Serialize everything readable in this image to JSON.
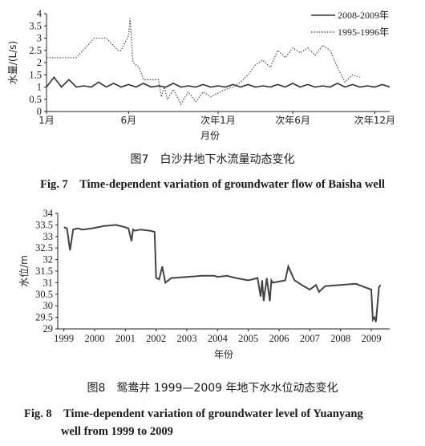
{
  "chart_data": [
    {
      "type": "line",
      "ylabel": "水量/(L/s)",
      "xlabel": "月份",
      "ylim": [
        0,
        4
      ],
      "yticks": [
        "0",
        "0.5",
        "1",
        "1.5",
        "2",
        "2.5",
        "3",
        "3.5",
        "4"
      ],
      "xticks": [
        "1月",
        "6月",
        "次年1月",
        "次年6月",
        "次年12月"
      ],
      "legend_position": "top-right",
      "series": [
        {
          "name": "2008-2009年",
          "style": "solid",
          "color": "#333333",
          "x": [
            0,
            0.5,
            1,
            1.5,
            2,
            2.5,
            3,
            3.5,
            4,
            4.5,
            5,
            5.5,
            6,
            6.5,
            7,
            7.5,
            8,
            8.5,
            9,
            9.5,
            10,
            10.5,
            11,
            11.5,
            12,
            12.5,
            13,
            13.5,
            14,
            14.5,
            15,
            15.5,
            16,
            16.5,
            17,
            17.5,
            18,
            18.5,
            19,
            19.5,
            20,
            20.5,
            21,
            21.5,
            22,
            22.5,
            23
          ],
          "y": [
            1.0,
            1.4,
            1.0,
            1.3,
            1.0,
            1.05,
            1.0,
            1.2,
            1.0,
            1.15,
            1.0,
            1.1,
            1.0,
            1.15,
            1.0,
            1.05,
            1.0,
            1.15,
            1.0,
            1.05,
            1.0,
            1.1,
            1.0,
            1.05,
            1.0,
            1.1,
            1.0,
            1.1,
            1.0,
            1.05,
            1.0,
            1.1,
            1.0,
            1.15,
            1.0,
            1.1,
            1.0,
            1.05,
            1.0,
            1.15,
            1.0,
            1.1,
            1.0,
            1.05,
            1.0,
            1.1,
            1.0
          ]
        },
        {
          "name": "1995-1996年",
          "style": "dotted",
          "color": "#555555",
          "x": [
            0,
            2,
            3.2,
            4,
            4.8,
            5,
            5.5,
            5.6,
            5.8,
            6.2,
            6.5,
            7.5,
            7.7,
            7.9,
            8.1,
            8.5,
            9,
            9.5,
            10,
            10.5,
            11,
            12,
            12.5,
            13,
            13.5,
            14,
            14.5,
            15,
            15.5,
            16,
            16.5,
            17,
            17.5,
            18,
            18.5,
            19,
            19.5,
            20,
            20.5,
            21
          ],
          "y": [
            2.2,
            2.2,
            3.0,
            3.0,
            2.5,
            2.5,
            3.1,
            3.8,
            2.0,
            1.8,
            1.3,
            1.3,
            0.6,
            1.0,
            0.5,
            0.9,
            0.3,
            0.8,
            0.4,
            0.8,
            0.6,
            0.9,
            1.0,
            1.2,
            1.5,
            1.9,
            2.1,
            1.8,
            2.5,
            2.2,
            2.6,
            2.4,
            2.6,
            2.3,
            2.7,
            2.5,
            1.8,
            1.2,
            1.5,
            1.4
          ]
        }
      ]
    },
    {
      "type": "line",
      "ylabel": "水位/m",
      "xlabel": "年份",
      "ylim": [
        29,
        34
      ],
      "yticks": [
        "29",
        "29.5",
        "30",
        "30.5",
        "31",
        "31.5",
        "32",
        "32.5",
        "33",
        "33.5",
        "34"
      ],
      "xticks": [
        "1999",
        "2000",
        "2001",
        "2002",
        "2003",
        "2004",
        "2005",
        "2006",
        "2007",
        "2008",
        "2009"
      ],
      "series": [
        {
          "name": "水位",
          "color": "#444444",
          "x": [
            1999.0,
            1999.1,
            1999.2,
            1999.3,
            1999.45,
            1999.6,
            1999.9,
            2000.3,
            2000.7,
            2001.0,
            2001.1,
            2001.2,
            2001.25,
            2001.3,
            2001.5,
            2001.8,
            2001.95,
            2002.0,
            2002.1,
            2002.2,
            2002.3,
            2002.5,
            2003.0,
            2003.5,
            2003.9,
            2004.0,
            2004.3,
            2004.6,
            2005.0,
            2005.3,
            2005.4,
            2005.45,
            2005.5,
            2005.6,
            2005.7,
            2005.75,
            2005.8,
            2006.0,
            2006.2,
            2006.3,
            2006.5,
            2006.8,
            2007.0,
            2007.2,
            2007.3,
            2007.5,
            2008.0,
            2008.5,
            2008.8,
            2009.0,
            2009.05,
            2009.1,
            2009.15,
            2009.25,
            2009.3
          ],
          "y": [
            33.4,
            33.35,
            32.4,
            33.3,
            33.35,
            33.3,
            33.35,
            33.45,
            33.5,
            33.4,
            33.35,
            32.8,
            33.3,
            33.25,
            33.3,
            33.25,
            33.2,
            31.2,
            31.15,
            31.7,
            31.0,
            31.2,
            31.25,
            31.3,
            31.3,
            31.25,
            31.3,
            31.2,
            31.1,
            31.2,
            30.4,
            31.1,
            30.2,
            31.2,
            30.2,
            31.1,
            31.0,
            31.05,
            31.1,
            31.7,
            31.1,
            30.85,
            30.7,
            30.9,
            30.6,
            30.85,
            30.9,
            30.95,
            30.8,
            30.7,
            29.4,
            29.5,
            29.3,
            30.8,
            30.9
          ]
        }
      ]
    }
  ],
  "captions": {
    "fig7_cn": "图7　白沙井地下水流量动态变化",
    "fig7_en": "Fig. 7　Time-dependent variation of groundwater flow of Baisha well",
    "fig8_cn": "图8　鸳鸯井 1999—2009 年地下水水位动态变化",
    "fig8_en_1": "Fig. 8　Time-dependent variation of groundwater level of Yuanyang",
    "fig8_en_2": "well from 1999 to 2009"
  }
}
